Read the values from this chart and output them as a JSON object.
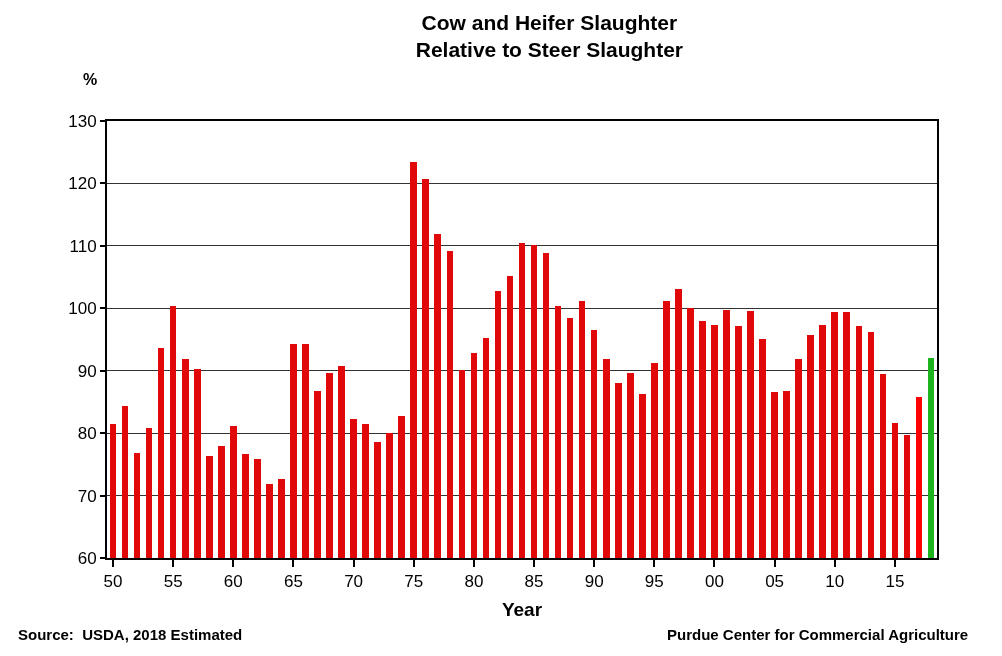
{
  "chart_data": {
    "type": "bar",
    "title": "Cow and Heifer Slaughter\nRelative to Steer Slaughter",
    "ylabel": "%",
    "xlabel": "Year",
    "annotations": [
      "Source:  USDA, 2018 Estimated",
      "Purdue Center for Commercial Agriculture"
    ],
    "categories": [
      "50",
      null,
      null,
      null,
      null,
      "55",
      null,
      null,
      null,
      null,
      "60",
      null,
      null,
      null,
      null,
      "65",
      null,
      null,
      null,
      null,
      "70",
      null,
      null,
      null,
      null,
      "75",
      null,
      null,
      null,
      null,
      "80",
      null,
      null,
      null,
      null,
      "85",
      null,
      null,
      null,
      null,
      "90",
      null,
      null,
      null,
      null,
      "95",
      null,
      null,
      null,
      null,
      "00",
      null,
      null,
      null,
      null,
      "05",
      null,
      null,
      null,
      null,
      "10",
      null,
      null,
      null,
      null,
      "15",
      null,
      null,
      null
    ],
    "values": [
      81.5,
      84.3,
      76.8,
      80.9,
      93.7,
      100.3,
      91.8,
      90.2,
      76.3,
      78.0,
      81.2,
      76.6,
      75.8,
      71.8,
      72.7,
      94.2,
      94.2,
      86.7,
      89.7,
      90.8,
      82.3,
      81.5,
      78.6,
      80.1,
      82.8,
      123.5,
      120.7,
      111.9,
      109.2,
      90.1,
      92.8,
      95.3,
      102.8,
      105.1,
      110.5,
      110.2,
      108.9,
      100.4,
      98.5,
      101.2,
      96.5,
      91.8,
      88.1,
      89.7,
      86.2,
      91.2,
      101.2,
      103.1,
      100.0,
      98.0,
      97.3,
      99.7,
      97.1,
      99.6,
      95.1,
      86.6,
      86.7,
      91.9,
      95.7,
      97.4,
      99.4,
      99.4,
      97.2,
      96.2,
      89.5,
      81.6,
      79.7,
      85.8,
      92.0
    ],
    "colors": [
      "#e00808",
      "#e00808",
      "#e00808",
      "#e00808",
      "#e00808",
      "#e00808",
      "#e00808",
      "#e00808",
      "#e00808",
      "#e00808",
      "#e00808",
      "#e00808",
      "#e00808",
      "#e00808",
      "#e00808",
      "#e00808",
      "#e00808",
      "#e00808",
      "#e00808",
      "#e00808",
      "#e00808",
      "#e00808",
      "#e00808",
      "#e00808",
      "#e00808",
      "#e00808",
      "#e00808",
      "#e00808",
      "#e00808",
      "#e00808",
      "#e00808",
      "#e00808",
      "#e00808",
      "#e00808",
      "#e00808",
      "#e00808",
      "#e00808",
      "#e00808",
      "#e00808",
      "#e00808",
      "#e00808",
      "#e00808",
      "#e00808",
      "#e00808",
      "#e00808",
      "#e00808",
      "#e00808",
      "#e00808",
      "#e00808",
      "#e00808",
      "#e00808",
      "#e00808",
      "#e00808",
      "#e00808",
      "#e00808",
      "#e00808",
      "#e00808",
      "#e00808",
      "#e00808",
      "#e00808",
      "#e00808",
      "#e00808",
      "#e00808",
      "#e00808",
      "#e00808",
      "#e00808",
      "#e00808",
      "#ff0000",
      "#1eb41e"
    ],
    "ylim": [
      60,
      130
    ],
    "yticks": [
      60,
      70,
      80,
      90,
      100,
      110,
      120,
      130
    ],
    "grid": "y"
  }
}
